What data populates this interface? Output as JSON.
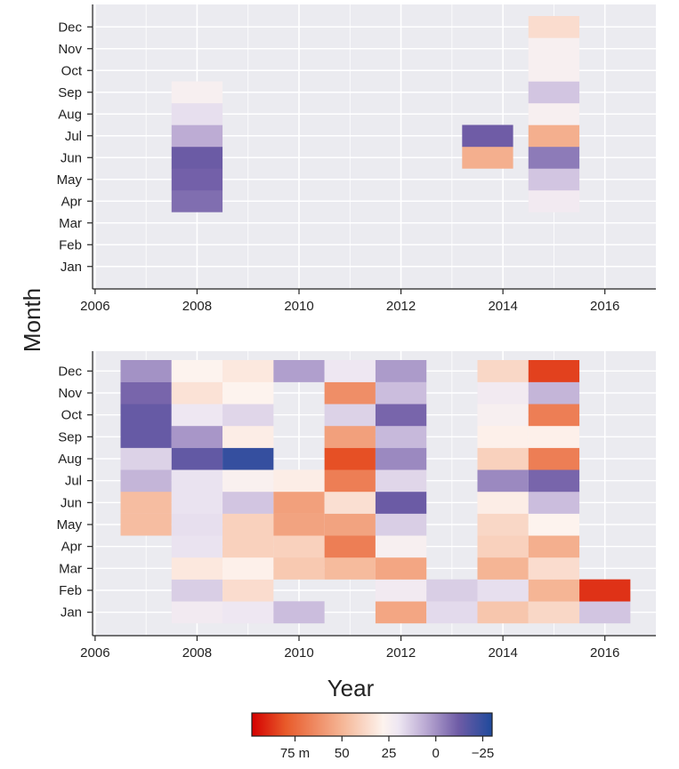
{
  "chart_data": {
    "type": "heatmap",
    "ylabel": "Month",
    "xlabel": "Year",
    "months": [
      "Jan",
      "Feb",
      "Mar",
      "Apr",
      "May",
      "Jun",
      "Jul",
      "Aug",
      "Sep",
      "Oct",
      "Nov",
      "Dec"
    ],
    "x_ticks": [
      "2006",
      "2008",
      "2010",
      "2012",
      "2014",
      "2016"
    ],
    "x_range": [
      2005.95,
      2017.0
    ],
    "panels": [
      {
        "name": "top",
        "cells": [
          {
            "year": 2008,
            "month": "Apr",
            "value": -8
          },
          {
            "year": 2008,
            "month": "May",
            "value": -11
          },
          {
            "year": 2008,
            "month": "Jun",
            "value": -13
          },
          {
            "year": 2008,
            "month": "Jul",
            "value": 6
          },
          {
            "year": 2008,
            "month": "Aug",
            "value": 18
          },
          {
            "year": 2008,
            "month": "Sep",
            "value": 25
          },
          {
            "year": 2013.7,
            "month": "Jun",
            "value": 52
          },
          {
            "year": 2013.7,
            "month": "Jul",
            "value": -12
          },
          {
            "year": 2015,
            "month": "Apr",
            "value": 22
          },
          {
            "year": 2015,
            "month": "May",
            "value": 12
          },
          {
            "year": 2015,
            "month": "Jun",
            "value": -5
          },
          {
            "year": 2015,
            "month": "Jul",
            "value": 52
          },
          {
            "year": 2015,
            "month": "Aug",
            "value": 25
          },
          {
            "year": 2015,
            "month": "Sep",
            "value": 12
          },
          {
            "year": 2015,
            "month": "Oct",
            "value": 25
          },
          {
            "year": 2015,
            "month": "Nov",
            "value": 25
          },
          {
            "year": 2015,
            "month": "Dec",
            "value": 36
          }
        ]
      },
      {
        "name": "bottom",
        "cells": [
          {
            "year": 2007,
            "month": "Jun",
            "value": 47
          },
          {
            "year": 2007,
            "month": "May",
            "value": 47
          },
          {
            "year": 2007,
            "month": "Jul",
            "value": 8
          },
          {
            "year": 2007,
            "month": "Aug",
            "value": 15
          },
          {
            "year": 2007,
            "month": "Sep",
            "value": -14
          },
          {
            "year": 2007,
            "month": "Oct",
            "value": -14
          },
          {
            "year": 2007,
            "month": "Nov",
            "value": -10
          },
          {
            "year": 2007,
            "month": "Dec",
            "value": 0
          },
          {
            "year": 2008,
            "month": "Jan",
            "value": 22
          },
          {
            "year": 2008,
            "month": "Feb",
            "value": 14
          },
          {
            "year": 2008,
            "month": "Mar",
            "value": 32
          },
          {
            "year": 2008,
            "month": "Apr",
            "value": 19
          },
          {
            "year": 2008,
            "month": "May",
            "value": 18
          },
          {
            "year": 2008,
            "month": "Jun",
            "value": 19
          },
          {
            "year": 2008,
            "month": "Jul",
            "value": 19
          },
          {
            "year": 2008,
            "month": "Aug",
            "value": -15
          },
          {
            "year": 2008,
            "month": "Sep",
            "value": 1
          },
          {
            "year": 2008,
            "month": "Oct",
            "value": 20
          },
          {
            "year": 2008,
            "month": "Nov",
            "value": 34
          },
          {
            "year": 2008,
            "month": "Dec",
            "value": 28
          },
          {
            "year": 2009,
            "month": "Jan",
            "value": 20
          },
          {
            "year": 2009,
            "month": "Feb",
            "value": 36
          },
          {
            "year": 2009,
            "month": "Mar",
            "value": 29
          },
          {
            "year": 2009,
            "month": "Apr",
            "value": 40
          },
          {
            "year": 2009,
            "month": "May",
            "value": 40
          },
          {
            "year": 2009,
            "month": "Jun",
            "value": 12
          },
          {
            "year": 2009,
            "month": "Jul",
            "value": 26
          },
          {
            "year": 2009,
            "month": "Aug",
            "value": -25
          },
          {
            "year": 2009,
            "month": "Sep",
            "value": 30
          },
          {
            "year": 2009,
            "month": "Oct",
            "value": 16
          },
          {
            "year": 2009,
            "month": "Nov",
            "value": 28
          },
          {
            "year": 2009,
            "month": "Dec",
            "value": 32
          },
          {
            "year": 2010,
            "month": "Jan",
            "value": 10
          },
          {
            "year": 2010,
            "month": "Mar",
            "value": 43
          },
          {
            "year": 2010,
            "month": "Apr",
            "value": 40
          },
          {
            "year": 2010,
            "month": "May",
            "value": 56
          },
          {
            "year": 2010,
            "month": "Jun",
            "value": 57
          },
          {
            "year": 2010,
            "month": "Jul",
            "value": 30
          },
          {
            "year": 2010,
            "month": "Dec",
            "value": 3
          },
          {
            "year": 2011,
            "month": "Mar",
            "value": 48
          },
          {
            "year": 2011,
            "month": "Apr",
            "value": 68
          },
          {
            "year": 2011,
            "month": "May",
            "value": 56
          },
          {
            "year": 2011,
            "month": "Jun",
            "value": 35
          },
          {
            "year": 2011,
            "month": "Jul",
            "value": 68
          },
          {
            "year": 2011,
            "month": "Aug",
            "value": 82
          },
          {
            "year": 2011,
            "month": "Sep",
            "value": 57
          },
          {
            "year": 2011,
            "month": "Oct",
            "value": 15
          },
          {
            "year": 2011,
            "month": "Nov",
            "value": 63
          },
          {
            "year": 2011,
            "month": "Dec",
            "value": 20
          },
          {
            "year": 2012,
            "month": "Jan",
            "value": 55
          },
          {
            "year": 2012,
            "month": "Feb",
            "value": 22
          },
          {
            "year": 2012,
            "month": "Mar",
            "value": 55
          },
          {
            "year": 2012,
            "month": "Apr",
            "value": 25
          },
          {
            "year": 2012,
            "month": "May",
            "value": 14
          },
          {
            "year": 2012,
            "month": "Jun",
            "value": -13
          },
          {
            "year": 2012,
            "month": "Jul",
            "value": 16
          },
          {
            "year": 2012,
            "month": "Aug",
            "value": -2
          },
          {
            "year": 2012,
            "month": "Sep",
            "value": 9
          },
          {
            "year": 2012,
            "month": "Oct",
            "value": -10
          },
          {
            "year": 2012,
            "month": "Nov",
            "value": 10
          },
          {
            "year": 2012,
            "month": "Dec",
            "value": 2
          },
          {
            "year": 2013,
            "month": "Jan",
            "value": 17
          },
          {
            "year": 2013,
            "month": "Feb",
            "value": 14
          },
          {
            "year": 2014,
            "month": "Jan",
            "value": 44
          },
          {
            "year": 2014,
            "month": "Feb",
            "value": 18
          },
          {
            "year": 2014,
            "month": "Mar",
            "value": 50
          },
          {
            "year": 2014,
            "month": "Apr",
            "value": 40
          },
          {
            "year": 2014,
            "month": "May",
            "value": 38
          },
          {
            "year": 2014,
            "month": "Jun",
            "value": 30
          },
          {
            "year": 2014,
            "month": "Jul",
            "value": -2
          },
          {
            "year": 2014,
            "month": "Aug",
            "value": 40
          },
          {
            "year": 2014,
            "month": "Sep",
            "value": 29
          },
          {
            "year": 2014,
            "month": "Oct",
            "value": 25
          },
          {
            "year": 2014,
            "month": "Nov",
            "value": 22
          },
          {
            "year": 2014,
            "month": "Dec",
            "value": 38
          },
          {
            "year": 2015,
            "month": "Jan",
            "value": 38
          },
          {
            "year": 2015,
            "month": "Feb",
            "value": 50
          },
          {
            "year": 2015,
            "month": "Mar",
            "value": 36
          },
          {
            "year": 2015,
            "month": "Apr",
            "value": 52
          },
          {
            "year": 2015,
            "month": "May",
            "value": 28
          },
          {
            "year": 2015,
            "month": "Jun",
            "value": 10
          },
          {
            "year": 2015,
            "month": "Jul",
            "value": -10
          },
          {
            "year": 2015,
            "month": "Aug",
            "value": 68
          },
          {
            "year": 2015,
            "month": "Sep",
            "value": 29
          },
          {
            "year": 2015,
            "month": "Oct",
            "value": 68
          },
          {
            "year": 2015,
            "month": "Nov",
            "value": 8
          },
          {
            "year": 2015,
            "month": "Dec",
            "value": 85
          },
          {
            "year": 2016,
            "month": "Jan",
            "value": 12
          },
          {
            "year": 2016,
            "month": "Feb",
            "value": 88
          }
        ]
      }
    ],
    "colorbar": {
      "labels": [
        "75 m",
        "50",
        "25",
        "0",
        "−25"
      ],
      "label_values": [
        75,
        50,
        25,
        0,
        -25
      ],
      "range": [
        -30,
        98
      ],
      "colors": [
        "#d40000",
        "#e85a2a",
        "#f5b595",
        "#fdf3ee",
        "#eee7f2",
        "#b9a8d2",
        "#6f5ca6",
        "#1f4a9c"
      ],
      "stops": [
        98,
        80,
        50,
        28,
        20,
        5,
        -12,
        -30
      ]
    }
  }
}
